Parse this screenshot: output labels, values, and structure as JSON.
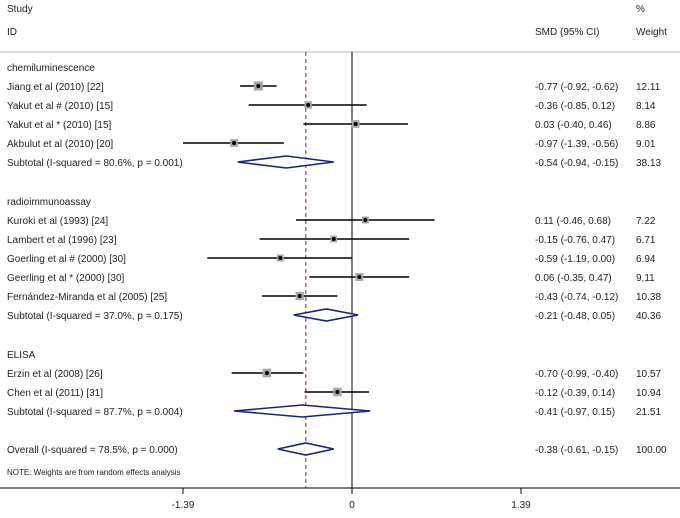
{
  "chart_data": {
    "type": "forest",
    "header": {
      "study": "Study",
      "id": "ID",
      "smd": "SMD (95% CI)",
      "pct": "%",
      "weight": "Weight"
    },
    "null_line": 0,
    "overall_line": -0.38,
    "xticks": [
      {
        "value": -1.39,
        "label": "-1.39"
      },
      {
        "value": 0,
        "label": "0"
      },
      {
        "value": 1.39,
        "label": "1.39"
      }
    ],
    "colors": {
      "diamond": "#1a237e",
      "box": "#a6a6a6",
      "overall_line": "#8b2a2a"
    },
    "rows": [
      {
        "kind": "group",
        "label": "chemiluminescence"
      },
      {
        "kind": "study",
        "label": "Jiang et al (2010) [22]",
        "est": -0.77,
        "lo": -0.92,
        "hi": -0.62,
        "ci": "-0.77 (-0.92, -0.62)",
        "weight": "12.11"
      },
      {
        "kind": "study",
        "label": "Yakut et al # (2010) [15]",
        "est": -0.36,
        "lo": -0.85,
        "hi": 0.12,
        "ci": "-0.36 (-0.85, 0.12)",
        "weight": "8.14"
      },
      {
        "kind": "study",
        "label": "Yakut et al * (2010) [15]",
        "est": 0.03,
        "lo": -0.4,
        "hi": 0.46,
        "ci": "0.03 (-0.40, 0.46)",
        "weight": "8.86"
      },
      {
        "kind": "study",
        "label": "Akbulut et al (2010) [20]",
        "est": -0.97,
        "lo": -1.39,
        "hi": -0.56,
        "ci": "-0.97 (-1.39, -0.56)",
        "weight": "9.01"
      },
      {
        "kind": "subtotal",
        "label": "Subtotal  (I-squared = 80.6%, p = 0.001)",
        "est": -0.54,
        "lo": -0.94,
        "hi": -0.15,
        "ci": "-0.54 (-0.94, -0.15)",
        "weight": "38.13"
      },
      {
        "kind": "blank"
      },
      {
        "kind": "group",
        "label": "radioimmunoassay"
      },
      {
        "kind": "study",
        "label": "Kuroki et al (1993) [24]",
        "est": 0.11,
        "lo": -0.46,
        "hi": 0.68,
        "ci": "0.11 (-0.46, 0.68)",
        "weight": "7.22"
      },
      {
        "kind": "study",
        "label": "Lambert et al (1996) [23]",
        "est": -0.15,
        "lo": -0.76,
        "hi": 0.47,
        "ci": "-0.15 (-0.76, 0.47)",
        "weight": "6.71"
      },
      {
        "kind": "study",
        "label": "Goerling et al # (2000) [30]",
        "est": -0.59,
        "lo": -1.19,
        "hi": 0.0,
        "ci": "-0.59 (-1.19, 0.00)",
        "weight": "6.94"
      },
      {
        "kind": "study",
        "label": "Geerling et al * (2000) [30]",
        "est": 0.06,
        "lo": -0.35,
        "hi": 0.47,
        "ci": "0.06 (-0.35, 0.47)",
        "weight": "9.11"
      },
      {
        "kind": "study",
        "label": "Fernández-Miranda et al (2005) [25]",
        "est": -0.43,
        "lo": -0.74,
        "hi": -0.12,
        "ci": "-0.43 (-0.74, -0.12)",
        "weight": "10.38"
      },
      {
        "kind": "subtotal",
        "label": "Subtotal  (I-squared = 37.0%, p = 0.175)",
        "est": -0.21,
        "lo": -0.48,
        "hi": 0.05,
        "ci": "-0.21 (-0.48, 0.05)",
        "weight": "40.36"
      },
      {
        "kind": "blank"
      },
      {
        "kind": "group",
        "label": "ELISA"
      },
      {
        "kind": "study",
        "label": "Erzin et al (2008) [26]",
        "est": -0.7,
        "lo": -0.99,
        "hi": -0.4,
        "ci": "-0.70 (-0.99, -0.40)",
        "weight": "10.57"
      },
      {
        "kind": "study",
        "label": "Chen et al (2011) [31]",
        "est": -0.12,
        "lo": -0.39,
        "hi": 0.14,
        "ci": "-0.12 (-0.39, 0.14)",
        "weight": "10.94"
      },
      {
        "kind": "subtotal",
        "label": "Subtotal  (I-squared = 87.7%, p = 0.004)",
        "est": -0.41,
        "lo": -0.97,
        "hi": 0.15,
        "ci": "-0.41 (-0.97, 0.15)",
        "weight": "21.51"
      },
      {
        "kind": "blank"
      },
      {
        "kind": "overall",
        "label": "Overall  (I-squared = 78.5%, p = 0.000)",
        "est": -0.38,
        "lo": -0.61,
        "hi": -0.15,
        "ci": "-0.38 (-0.61, -0.15)",
        "weight": "100.00"
      }
    ],
    "note": "NOTE: Weights are from random effects analysis"
  }
}
